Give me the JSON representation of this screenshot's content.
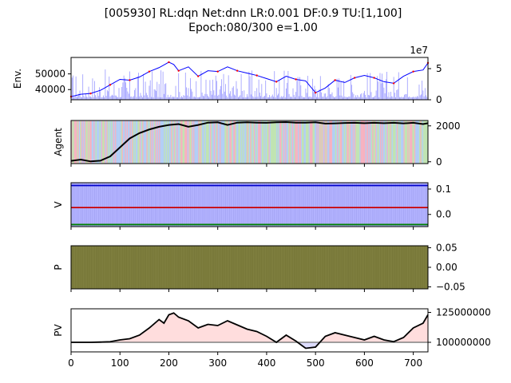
{
  "title_line1": "[005930] RL:dqn Net:dnn LR:0.001 DF:0.9 TU:[1,100]",
  "title_line2": "Epoch:080/300 e=1.00",
  "chart_data": [
    {
      "name": "env",
      "type": "line",
      "ylabel": "Env.",
      "xlim": [
        0,
        730
      ],
      "ylim": [
        33500,
        60500
      ],
      "yticks": [
        "40000",
        "50000"
      ],
      "ytick_values": [
        40000,
        50000
      ],
      "secondary_axis": {
        "offset_text": "1e7",
        "yticks": [
          "0",
          "5"
        ],
        "ytick_values": [
          0,
          5
        ],
        "ylim": [
          0,
          6.8
        ],
        "series": "volume"
      },
      "series": [
        {
          "role": "close",
          "color": "#0000ff"
        },
        {
          "role": "up-markers",
          "color": "#ff0000"
        },
        {
          "role": "volume",
          "color": "#9999ff"
        }
      ],
      "x": [
        0,
        20,
        40,
        60,
        80,
        100,
        120,
        140,
        160,
        180,
        200,
        210,
        220,
        240,
        260,
        280,
        300,
        320,
        340,
        360,
        380,
        400,
        420,
        440,
        460,
        480,
        500,
        520,
        540,
        560,
        580,
        600,
        620,
        640,
        660,
        680,
        700,
        720,
        730
      ],
      "close": [
        35500,
        37000,
        37500,
        39500,
        43000,
        46500,
        46000,
        48000,
        51500,
        54000,
        57500,
        56000,
        52000,
        54500,
        48500,
        52000,
        51500,
        54500,
        52000,
        50500,
        49000,
        47000,
        45000,
        48500,
        46500,
        45500,
        38000,
        41000,
        46000,
        44500,
        47500,
        49000,
        47500,
        45000,
        44000,
        48500,
        51500,
        52500,
        57000
      ]
    },
    {
      "name": "agent",
      "type": "line",
      "ylabel": "Agent",
      "xlim": [
        0,
        730
      ],
      "ylim": [
        -100,
        2300
      ],
      "yticks": [
        "0",
        "2000"
      ],
      "ytick_values": [
        0,
        2000
      ],
      "background": "action-colored vertical bands",
      "band_colors": [
        "#f4a8b8",
        "#a8c8f4",
        "#b8e0a8"
      ],
      "series": [
        {
          "role": "holdings",
          "color": "#000000"
        }
      ],
      "x": [
        0,
        20,
        40,
        60,
        80,
        100,
        120,
        140,
        160,
        180,
        200,
        220,
        240,
        260,
        280,
        300,
        320,
        340,
        360,
        380,
        400,
        420,
        440,
        460,
        480,
        500,
        520,
        540,
        560,
        580,
        600,
        620,
        640,
        660,
        680,
        700,
        720,
        730
      ],
      "y": [
        50,
        120,
        20,
        60,
        300,
        800,
        1300,
        1600,
        1800,
        1950,
        2050,
        2100,
        1950,
        2050,
        2180,
        2200,
        2050,
        2180,
        2200,
        2180,
        2170,
        2200,
        2210,
        2180,
        2180,
        2200,
        2130,
        2140,
        2160,
        2170,
        2150,
        2170,
        2150,
        2170,
        2140,
        2170,
        2100,
        2150
      ]
    },
    {
      "name": "value",
      "type": "line",
      "ylabel": "V",
      "xlim": [
        0,
        730
      ],
      "ylim": [
        -0.048,
        0.125
      ],
      "yticks": [
        "0.0",
        "0.1"
      ],
      "ytick_values": [
        0.0,
        0.1
      ],
      "background_color": "#b3b3ff",
      "series": [
        {
          "role": "upper",
          "color": "#0000cc",
          "value": 0.114
        },
        {
          "role": "middle",
          "color": "#cc0000",
          "value": 0.027
        },
        {
          "role": "lower",
          "color": "#008000",
          "value": -0.04
        }
      ]
    },
    {
      "name": "policy",
      "type": "area",
      "ylabel": "P",
      "xlim": [
        0,
        730
      ],
      "ylim": [
        -0.055,
        0.055
      ],
      "yticks": [
        "0.05",
        "0.00",
        "−0.05"
      ],
      "ytick_values": [
        0.05,
        0.0,
        -0.05
      ],
      "fill_color": "#808040"
    },
    {
      "name": "portfolio-value",
      "type": "line",
      "ylabel": "PV",
      "xlabel": "",
      "xlim": [
        0,
        730
      ],
      "ylim": [
        92000000,
        128000000
      ],
      "yticks": [
        "100000000",
        "125000000"
      ],
      "ytick_values": [
        100000000,
        125000000
      ],
      "xticks": [
        "0",
        "100",
        "200",
        "300",
        "400",
        "500",
        "600",
        "700"
      ],
      "xtick_values": [
        0,
        100,
        200,
        300,
        400,
        500,
        600,
        700
      ],
      "baseline": 100000000,
      "series": [
        {
          "role": "pv",
          "color": "#000000"
        }
      ],
      "x": [
        0,
        20,
        40,
        60,
        80,
        100,
        120,
        140,
        160,
        180,
        190,
        200,
        210,
        220,
        240,
        260,
        280,
        300,
        320,
        340,
        360,
        380,
        400,
        420,
        440,
        460,
        480,
        500,
        520,
        540,
        560,
        580,
        600,
        620,
        640,
        660,
        680,
        700,
        720,
        730
      ],
      "y": [
        100000000,
        100000000,
        100000000,
        100200000,
        100500000,
        102000000,
        103000000,
        106000000,
        112000000,
        119000000,
        116000000,
        123000000,
        124500000,
        121000000,
        118000000,
        112000000,
        115000000,
        114000000,
        118000000,
        114500000,
        111000000,
        109000000,
        105000000,
        100000000,
        106000000,
        101000000,
        95000000,
        96000000,
        105000000,
        108000000,
        106000000,
        104000000,
        102000000,
        105000000,
        102000000,
        100500000,
        104000000,
        112000000,
        116000000,
        123000000
      ]
    }
  ]
}
